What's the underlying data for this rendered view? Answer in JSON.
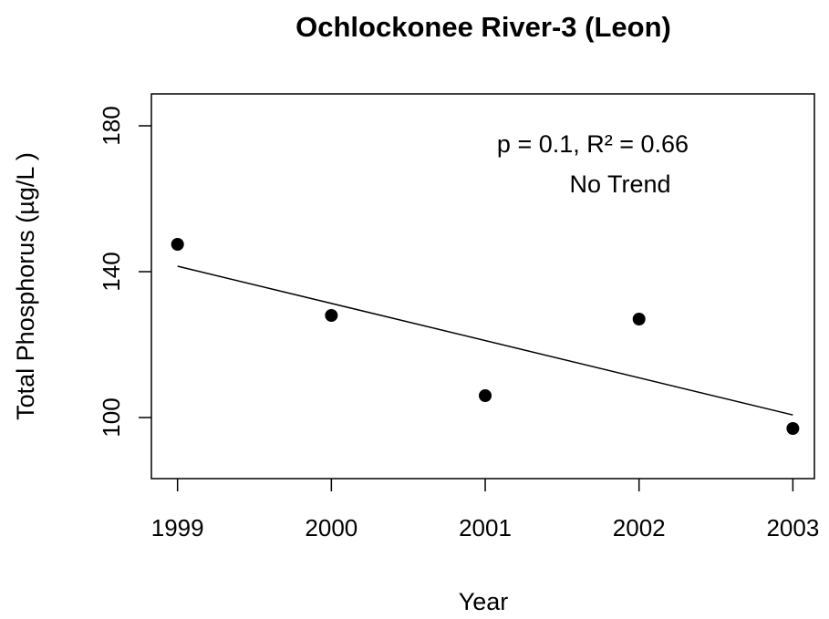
{
  "chart_data": {
    "type": "scatter",
    "title": "Ochlockonee River-3 (Leon)",
    "xlabel": "Year",
    "ylabel": "Total Phosphorus (µg/L )",
    "x": [
      1999,
      2000,
      2001,
      2002,
      2003
    ],
    "values": [
      147.5,
      128,
      106,
      127,
      97
    ],
    "color": "#000000",
    "trend": {
      "x": [
        1999,
        2003
      ],
      "values": [
        141.5,
        100.7
      ]
    },
    "annotations": [
      "p = 0.1, R² = 0.66",
      "No Trend"
    ],
    "xlim": [
      1998.83,
      2003.14
    ],
    "ylim": [
      83.25,
      188.75
    ],
    "xticks": [
      1999,
      2000,
      2001,
      2002,
      2003
    ],
    "yticks": [
      100,
      140,
      180
    ]
  }
}
